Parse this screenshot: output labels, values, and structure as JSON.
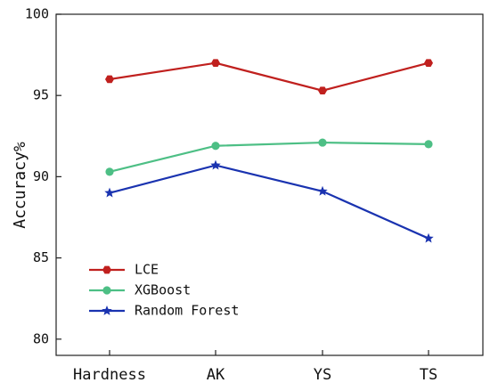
{
  "chart_data": {
    "type": "line",
    "categories": [
      "Hardness",
      "AK",
      "YS",
      "TS"
    ],
    "ylabel": "Accuracy%",
    "xlabel": "",
    "ylim": [
      79,
      100
    ],
    "yticks": [
      80,
      85,
      90,
      95,
      100
    ],
    "grid": false,
    "legend_position": "bottom-left",
    "series": [
      {
        "name": "LCE",
        "values": [
          96.0,
          97.0,
          95.3,
          97.0
        ],
        "color": "#c0201e",
        "marker": "hexagon"
      },
      {
        "name": "XGBoost",
        "values": [
          90.3,
          91.9,
          92.1,
          92.0
        ],
        "color": "#4dbf85",
        "marker": "circle"
      },
      {
        "name": "Random Forest",
        "values": [
          89.0,
          90.7,
          89.1,
          86.2
        ],
        "color": "#1a33b0",
        "marker": "star"
      }
    ]
  }
}
